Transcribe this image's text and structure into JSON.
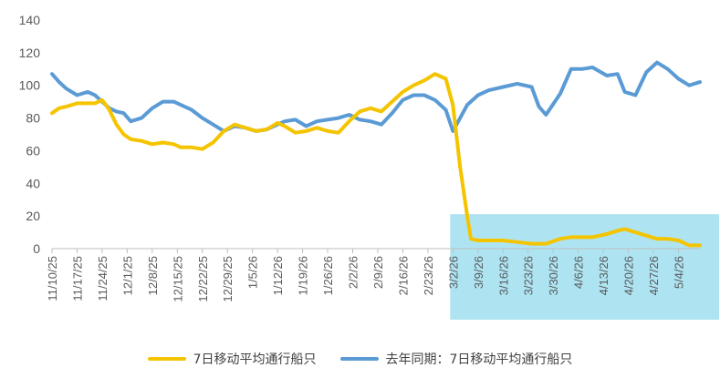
{
  "chart_data": {
    "type": "line",
    "title": "",
    "xlabel": "",
    "ylabel": "",
    "ylim": [
      0,
      140
    ],
    "yticks": [
      0,
      20,
      40,
      60,
      80,
      100,
      120,
      140
    ],
    "grid": false,
    "legend_position": "bottom",
    "x_tick_labels": [
      "11/10/25",
      "11/17/25",
      "11/24/25",
      "12/1/25",
      "12/8/25",
      "12/15/25",
      "12/22/25",
      "12/29/25",
      "1/5/26",
      "1/12/26",
      "1/19/26",
      "1/26/26",
      "2/2/26",
      "2/9/26",
      "2/16/26",
      "2/23/26",
      "3/2/26",
      "3/9/26",
      "3/16/26",
      "3/23/26",
      "3/30/26",
      "4/6/26",
      "4/13/26",
      "4/20/26",
      "4/27/26",
      "5/4/26"
    ],
    "highlight_region": {
      "from": "3/2/26",
      "to": "5/10/26",
      "color": "#aee4f2"
    },
    "series": [
      {
        "name": "7日移动平均通行船只",
        "color": "#f5c400",
        "points": [
          [
            "11/10/25",
            83
          ],
          [
            "11/12/25",
            86
          ],
          [
            "11/14/25",
            87
          ],
          [
            "11/17/25",
            89
          ],
          [
            "11/20/25",
            89
          ],
          [
            "11/22/25",
            89
          ],
          [
            "11/24/25",
            91
          ],
          [
            "11/26/25",
            85
          ],
          [
            "11/28/25",
            76
          ],
          [
            "11/30/25",
            70
          ],
          [
            "12/2/25",
            67
          ],
          [
            "12/5/25",
            66
          ],
          [
            "12/8/25",
            64
          ],
          [
            "12/11/25",
            65
          ],
          [
            "12/14/25",
            64
          ],
          [
            "12/16/25",
            62
          ],
          [
            "12/19/25",
            62
          ],
          [
            "12/22/25",
            61
          ],
          [
            "12/25/25",
            65
          ],
          [
            "12/28/25",
            72
          ],
          [
            "12/31/25",
            76
          ],
          [
            "1/3/26",
            74
          ],
          [
            "1/6/26",
            72
          ],
          [
            "1/9/26",
            73
          ],
          [
            "1/12/26",
            77
          ],
          [
            "1/14/26",
            75
          ],
          [
            "1/17/26",
            71
          ],
          [
            "1/20/26",
            72
          ],
          [
            "1/23/26",
            74
          ],
          [
            "1/26/26",
            72
          ],
          [
            "1/29/26",
            71
          ],
          [
            "2/1/26",
            78
          ],
          [
            "2/4/26",
            84
          ],
          [
            "2/7/26",
            86
          ],
          [
            "2/10/26",
            84
          ],
          [
            "2/13/26",
            90
          ],
          [
            "2/16/26",
            96
          ],
          [
            "2/19/26",
            100
          ],
          [
            "2/22/26",
            103
          ],
          [
            "2/25/26",
            107
          ],
          [
            "2/28/26",
            104
          ],
          [
            "3/2/26",
            88
          ],
          [
            "3/4/26",
            50
          ],
          [
            "3/6/26",
            20
          ],
          [
            "3/7/26",
            6
          ],
          [
            "3/9/26",
            5
          ],
          [
            "3/12/26",
            5
          ],
          [
            "3/16/26",
            5
          ],
          [
            "3/20/26",
            4
          ],
          [
            "3/24/26",
            3
          ],
          [
            "3/28/26",
            3
          ],
          [
            "4/1/26",
            6
          ],
          [
            "4/4/26",
            7
          ],
          [
            "4/7/26",
            7
          ],
          [
            "4/10/26",
            7
          ],
          [
            "4/14/26",
            9
          ],
          [
            "4/17/26",
            11
          ],
          [
            "4/19/26",
            12
          ],
          [
            "4/22/26",
            10
          ],
          [
            "4/25/26",
            8
          ],
          [
            "4/28/26",
            6
          ],
          [
            "5/1/26",
            6
          ],
          [
            "5/4/26",
            5
          ],
          [
            "5/7/26",
            2
          ],
          [
            "5/10/26",
            2
          ]
        ]
      },
      {
        "name": "去年同期：7日移动平均通行船只",
        "color": "#5b9bd5",
        "points": [
          [
            "11/10/25",
            107
          ],
          [
            "11/12/25",
            102
          ],
          [
            "11/14/25",
            98
          ],
          [
            "11/17/25",
            94
          ],
          [
            "11/20/25",
            96
          ],
          [
            "11/22/25",
            94
          ],
          [
            "11/24/25",
            90
          ],
          [
            "11/26/25",
            86
          ],
          [
            "11/28/25",
            84
          ],
          [
            "11/30/25",
            83
          ],
          [
            "12/2/25",
            78
          ],
          [
            "12/5/25",
            80
          ],
          [
            "12/8/25",
            86
          ],
          [
            "12/11/25",
            90
          ],
          [
            "12/14/25",
            90
          ],
          [
            "12/16/25",
            88
          ],
          [
            "12/19/25",
            85
          ],
          [
            "12/22/25",
            80
          ],
          [
            "12/25/25",
            76
          ],
          [
            "12/28/25",
            72
          ],
          [
            "12/31/25",
            75
          ],
          [
            "1/3/26",
            74
          ],
          [
            "1/6/26",
            72
          ],
          [
            "1/9/26",
            73
          ],
          [
            "1/12/26",
            76
          ],
          [
            "1/14/26",
            78
          ],
          [
            "1/17/26",
            79
          ],
          [
            "1/20/26",
            75
          ],
          [
            "1/23/26",
            78
          ],
          [
            "1/26/26",
            79
          ],
          [
            "1/29/26",
            80
          ],
          [
            "2/1/26",
            82
          ],
          [
            "2/4/26",
            79
          ],
          [
            "2/7/26",
            78
          ],
          [
            "2/10/26",
            76
          ],
          [
            "2/13/26",
            83
          ],
          [
            "2/16/26",
            91
          ],
          [
            "2/19/26",
            94
          ],
          [
            "2/22/26",
            94
          ],
          [
            "2/25/26",
            91
          ],
          [
            "2/28/26",
            85
          ],
          [
            "3/2/26",
            72
          ],
          [
            "3/4/26",
            80
          ],
          [
            "3/6/26",
            88
          ],
          [
            "3/9/26",
            94
          ],
          [
            "3/12/26",
            97
          ],
          [
            "3/16/26",
            99
          ],
          [
            "3/20/26",
            101
          ],
          [
            "3/24/26",
            99
          ],
          [
            "3/26/26",
            87
          ],
          [
            "3/28/26",
            82
          ],
          [
            "4/1/26",
            95
          ],
          [
            "4/4/26",
            110
          ],
          [
            "4/7/26",
            110
          ],
          [
            "4/10/26",
            111
          ],
          [
            "4/14/26",
            106
          ],
          [
            "4/17/26",
            107
          ],
          [
            "4/19/26",
            96
          ],
          [
            "4/22/26",
            94
          ],
          [
            "4/25/26",
            108
          ],
          [
            "4/28/26",
            114
          ],
          [
            "5/1/26",
            110
          ],
          [
            "5/4/26",
            104
          ],
          [
            "5/7/26",
            100
          ],
          [
            "5/10/26",
            102
          ]
        ]
      }
    ]
  }
}
